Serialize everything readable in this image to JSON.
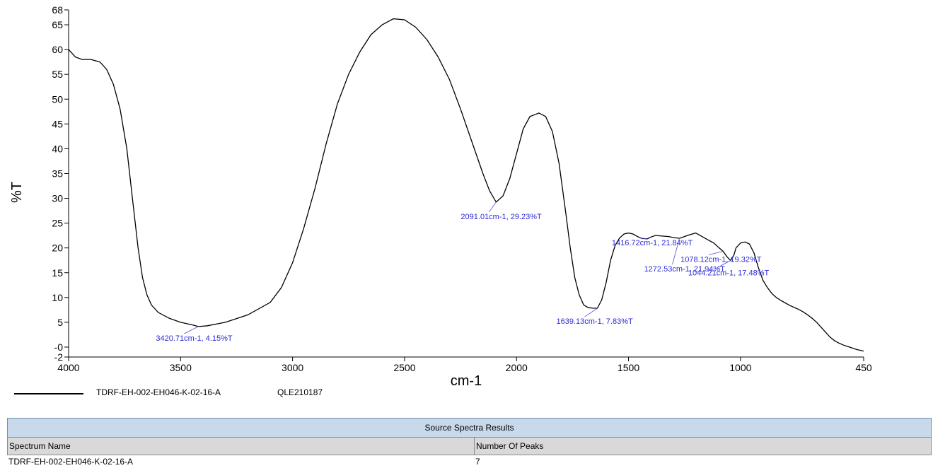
{
  "chart_data": {
    "type": "line",
    "xlabel": "cm-1",
    "ylabel": "%T",
    "xlim": [
      4000,
      450
    ],
    "ylim": [
      -2,
      68
    ],
    "x_ticks": [
      4000,
      3500,
      3000,
      2500,
      2000,
      1500,
      1000,
      450
    ],
    "y_ticks": [
      -2,
      0,
      5,
      10,
      15,
      20,
      25,
      30,
      35,
      40,
      45,
      50,
      55,
      60,
      65,
      68
    ],
    "y_tick_labels": [
      "-2",
      "-0",
      "5",
      "10",
      "15",
      "20",
      "25",
      "30",
      "35",
      "40",
      "45",
      "50",
      "55",
      "60",
      "65",
      "68"
    ],
    "series": [
      {
        "name": "TDRF-EH-002-EH046-K-02-16-A",
        "color": "#000000",
        "x": [
          4000,
          3970,
          3940,
          3900,
          3860,
          3830,
          3800,
          3770,
          3740,
          3710,
          3690,
          3670,
          3650,
          3630,
          3600,
          3550,
          3500,
          3450,
          3420,
          3380,
          3300,
          3200,
          3100,
          3050,
          3000,
          2950,
          2900,
          2850,
          2800,
          2750,
          2700,
          2650,
          2600,
          2550,
          2500,
          2450,
          2400,
          2350,
          2300,
          2250,
          2200,
          2150,
          2120,
          2091,
          2060,
          2030,
          2000,
          1970,
          1940,
          1900,
          1870,
          1840,
          1810,
          1780,
          1760,
          1740,
          1720,
          1700,
          1680,
          1660,
          1639,
          1620,
          1600,
          1580,
          1560,
          1540,
          1520,
          1500,
          1480,
          1460,
          1440,
          1416,
          1400,
          1380,
          1350,
          1320,
          1300,
          1272,
          1250,
          1230,
          1200,
          1180,
          1160,
          1140,
          1120,
          1100,
          1078,
          1060,
          1044,
          1030,
          1020,
          1000,
          980,
          960,
          940,
          920,
          900,
          880,
          860,
          840,
          820,
          800,
          780,
          760,
          740,
          720,
          700,
          680,
          660,
          640,
          620,
          600,
          580,
          560,
          540,
          520,
          500,
          480,
          460,
          450
        ],
        "y": [
          60.0,
          58.5,
          58.0,
          58.0,
          57.5,
          56.0,
          53.0,
          48.0,
          40.0,
          28.0,
          20.0,
          14.0,
          10.5,
          8.5,
          7.0,
          5.8,
          5.0,
          4.5,
          4.15,
          4.3,
          5.0,
          6.5,
          9.0,
          12.0,
          17.0,
          24.0,
          32.0,
          41.0,
          49.0,
          55.0,
          59.5,
          63.0,
          65.0,
          66.2,
          66.0,
          64.5,
          62.0,
          58.5,
          54.0,
          48.0,
          41.5,
          35.0,
          31.5,
          29.23,
          30.5,
          34.0,
          39.0,
          44.0,
          46.5,
          47.2,
          46.5,
          43.5,
          37.0,
          27.0,
          20.0,
          14.0,
          10.5,
          8.5,
          7.95,
          7.85,
          7.83,
          9.5,
          13.0,
          17.5,
          20.5,
          22.0,
          22.8,
          23.0,
          22.8,
          22.3,
          21.9,
          21.84,
          22.2,
          22.5,
          22.4,
          22.3,
          22.1,
          21.94,
          22.3,
          22.6,
          23.0,
          22.5,
          22.0,
          21.5,
          21.0,
          20.2,
          19.32,
          18.2,
          17.48,
          18.5,
          20.0,
          21.0,
          21.2,
          20.8,
          19.0,
          16.0,
          13.5,
          12.0,
          10.8,
          10.0,
          9.4,
          8.9,
          8.4,
          8.0,
          7.6,
          7.1,
          6.5,
          5.8,
          5.0,
          4.0,
          3.0,
          2.0,
          1.3,
          0.8,
          0.4,
          0.1,
          -0.2,
          -0.5,
          -0.7,
          -0.8
        ]
      }
    ],
    "annotations": [
      {
        "text": "3420.71cm-1, 4.15%T",
        "x": 3420.71,
        "y": 4.15
      },
      {
        "text": "2091.01cm-1, 29.23%T",
        "x": 2091.01,
        "y": 29.23
      },
      {
        "text": "1639.13cm-1, 7.83%T",
        "x": 1639.13,
        "y": 7.83
      },
      {
        "text": "1416.72cm-1, 21.84%T",
        "x": 1416.72,
        "y": 21.84
      },
      {
        "text": "1272.53cm-1, 21.94%T",
        "x": 1272.53,
        "y": 21.94
      },
      {
        "text": "1078.12cm-1, 19.32%T",
        "x": 1078.12,
        "y": 19.32
      },
      {
        "text": "1044.21cm-1, 17.48%T",
        "x": 1044.21,
        "y": 17.48
      }
    ]
  },
  "legend": {
    "series_name": "TDRF-EH-002-EH046-K-02-16-A",
    "series_code": "QLE210187"
  },
  "results_table": {
    "title": "Source Spectra Results",
    "headers": [
      "Spectrum Name",
      "Number Of Peaks"
    ],
    "rows": [
      [
        "TDRF-EH-002-EH046-K-02-16-A",
        "7"
      ]
    ]
  }
}
